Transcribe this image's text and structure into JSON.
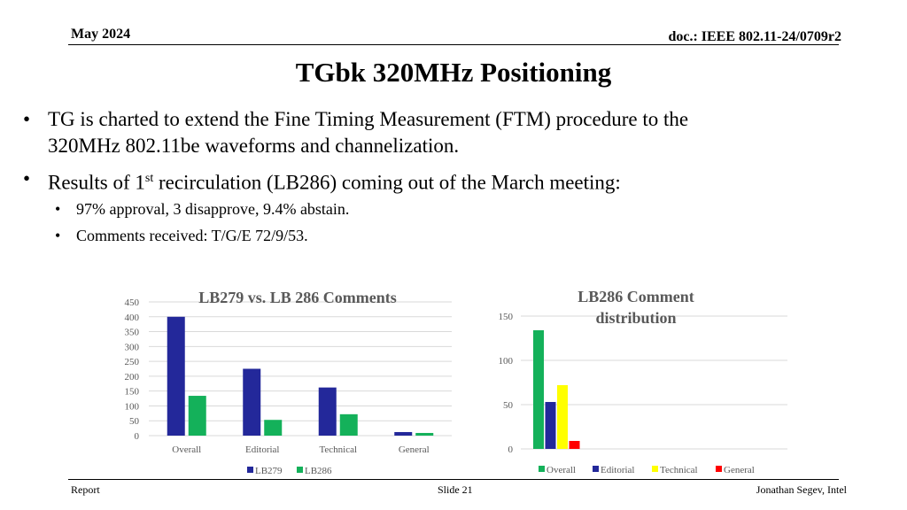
{
  "header": {
    "date": "May 2024",
    "doc": "doc.: IEEE 802.11-24/0709r2"
  },
  "title": "TGbk 320MHz Positioning",
  "bullets": [
    {
      "line1": "TG is charted to extend the Fine Timing Measurement (FTM) procedure to the",
      "line2": "320MHz 802.11be waveforms and channelization."
    },
    {
      "pre": "Results of 1",
      "sup": "st",
      "post": " recirculation (LB286) coming out of the March meeting:"
    }
  ],
  "sub_bullets": [
    "97% approval, 3 disapprove, 9.4% abstain.",
    "Comments received: T/G/E 72/9/53."
  ],
  "footer": {
    "left": "Report",
    "center": "Slide 21",
    "right": "Jonathan Segev, Intel"
  },
  "chart_data": [
    {
      "type": "bar",
      "title": "LB279 vs. LB 286 Comments",
      "categories": [
        "Overall",
        "Editorial",
        "Technical",
        "General"
      ],
      "series": [
        {
          "name": "LB279",
          "values": [
            400,
            225,
            162,
            12
          ],
          "color": "#23289a"
        },
        {
          "name": "LB286",
          "values": [
            134,
            53,
            72,
            9
          ],
          "color": "#14b15a"
        }
      ],
      "yticks": [
        "0",
        "50",
        "100",
        "150",
        "200",
        "250",
        "300",
        "350",
        "400",
        "450"
      ],
      "ylim": [
        0,
        450
      ],
      "grid": true,
      "legend": "bottom"
    },
    {
      "type": "bar",
      "title": "LB286 Comment distribution",
      "series": [
        {
          "name": "Overall",
          "values": [
            134
          ],
          "color": "#14b15a"
        },
        {
          "name": "Editorial",
          "values": [
            53
          ],
          "color": "#23289a"
        },
        {
          "name": "Technical",
          "values": [
            72
          ],
          "color": "#ffff00"
        },
        {
          "name": "General",
          "values": [
            9
          ],
          "color": "#ff0000"
        }
      ],
      "yticks": [
        "0",
        "50",
        "100",
        "150"
      ],
      "ylim": [
        0,
        150
      ],
      "grid": true,
      "legend": "bottom"
    }
  ]
}
